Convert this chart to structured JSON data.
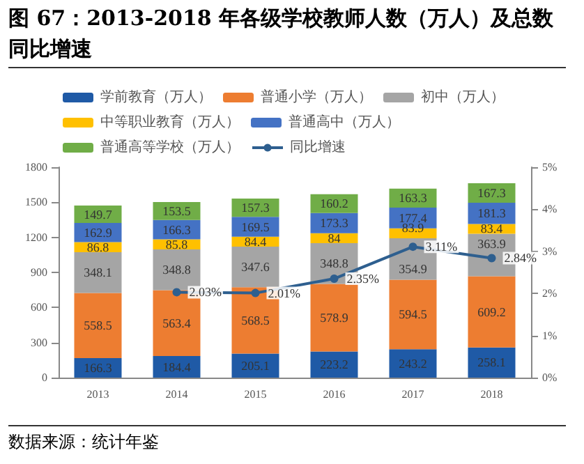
{
  "chart_data": {
    "type": "bar",
    "title": "图 67：2013-2018 年各级学校教师人数（万人）及总数同比增速",
    "categories": [
      "2013",
      "2014",
      "2015",
      "2016",
      "2017",
      "2018"
    ],
    "stacked": true,
    "data_labels": true,
    "legend": "top",
    "grid": false,
    "ylim": [
      0,
      1800
    ],
    "yticks": [
      0,
      300,
      600,
      900,
      1200,
      1500,
      1800
    ],
    "y2lim": [
      0,
      5
    ],
    "y2ticks": [
      {
        "value": 0,
        "label": "0%"
      },
      {
        "value": 1,
        "label": "1%"
      },
      {
        "value": 2,
        "label": "2%"
      },
      {
        "value": 3,
        "label": "3%"
      },
      {
        "value": 4,
        "label": "4%"
      },
      {
        "value": 5,
        "label": "5%"
      }
    ],
    "series": [
      {
        "name": "学前教育（万人）",
        "color": "#1f5aa6",
        "values": [
          166.3,
          184.4,
          205.1,
          223.2,
          243.2,
          258.1
        ]
      },
      {
        "name": "普通小学（万人）",
        "color": "#ed7d31",
        "values": [
          558.5,
          563.4,
          568.5,
          578.9,
          594.5,
          609.2
        ]
      },
      {
        "name": "初中（万人）",
        "color": "#a5a5a5",
        "values": [
          348.1,
          348.8,
          347.6,
          348.8,
          354.9,
          363.9
        ]
      },
      {
        "name": "中等职业教育（万人）",
        "color": "#ffc000",
        "values": [
          86.8,
          85.8,
          84.4,
          84,
          83.9,
          83.4
        ]
      },
      {
        "name": "普通高中（万人）",
        "color": "#4472c4",
        "values": [
          162.9,
          166.3,
          169.5,
          173.3,
          177.4,
          181.3
        ]
      },
      {
        "name": "普通高等学校（万人）",
        "color": "#70ad47",
        "values": [
          149.7,
          153.5,
          157.3,
          160.2,
          163.3,
          167.3
        ]
      },
      {
        "name": "同比增速",
        "type": "line",
        "axis": "y2",
        "color": "#2e5f8f",
        "marker": "circle",
        "values": [
          null,
          2.03,
          2.01,
          2.35,
          3.11,
          2.84
        ],
        "value_labels": [
          null,
          "2.03%",
          "2.01%",
          "2.35%",
          "3.11%",
          "2.84%"
        ]
      }
    ],
    "annotations": [
      "数据来源：统计年鉴"
    ]
  }
}
